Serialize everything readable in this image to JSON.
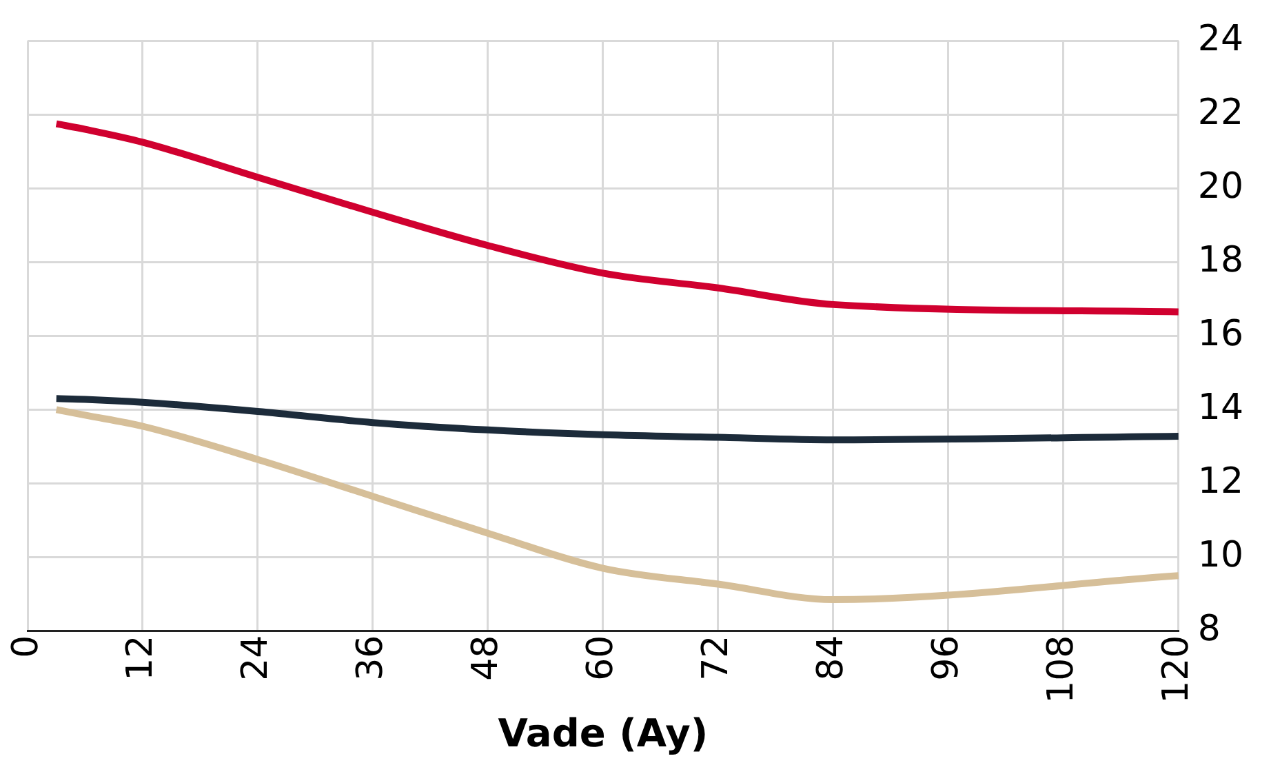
{
  "chart_data": {
    "type": "line",
    "xlabel": "Vade (Ay)",
    "xlim": [
      0,
      120
    ],
    "xticks": [
      0,
      12,
      24,
      36,
      48,
      60,
      72,
      84,
      96,
      108,
      120
    ],
    "ylim": [
      8,
      24
    ],
    "yticks": [
      8,
      10,
      12,
      14,
      16,
      18,
      20,
      22,
      24
    ],
    "grid": true,
    "legend": false,
    "marker": "none",
    "line_style": "solid",
    "x": [
      3,
      6,
      12,
      24,
      36,
      48,
      60,
      72,
      84,
      120
    ],
    "series": [
      {
        "color": "#d0002f",
        "values": [
          21.75,
          21.6,
          21.25,
          20.3,
          19.35,
          18.45,
          17.7,
          17.3,
          16.85,
          16.65
        ]
      },
      {
        "color": "#1c2b3a",
        "values": [
          14.3,
          14.28,
          14.2,
          13.95,
          13.65,
          13.45,
          13.32,
          13.25,
          13.18,
          13.28
        ]
      },
      {
        "color": "#d6bf99",
        "values": [
          14.0,
          13.85,
          13.55,
          12.65,
          11.65,
          10.65,
          9.7,
          9.27,
          8.85,
          9.5
        ]
      }
    ]
  }
}
